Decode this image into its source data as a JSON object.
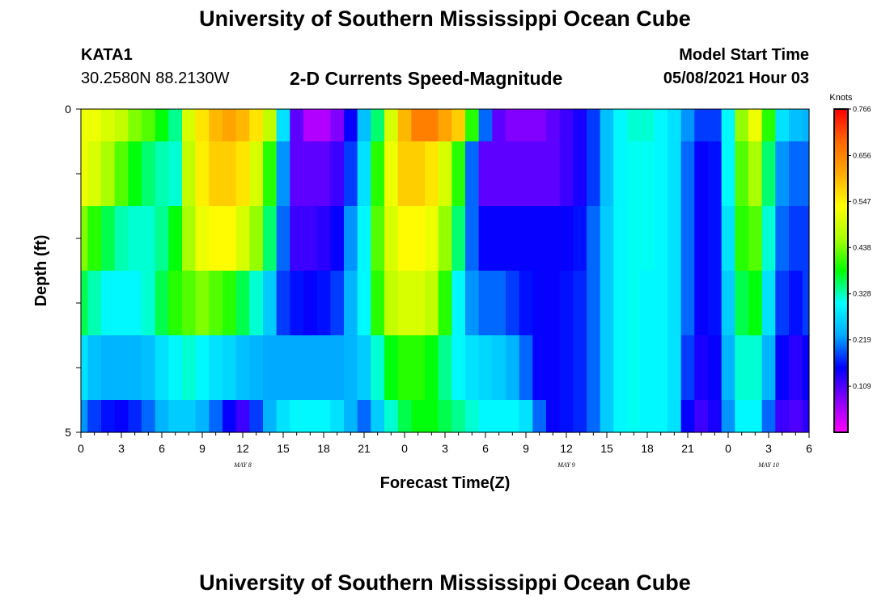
{
  "header": {
    "title": "University of Southern Mississippi Ocean Cube",
    "station_id": "KATA1",
    "station_coords": "30.2580N  88.2130W",
    "plot_title": "2-D Currents Speed-Magnitude",
    "model_start_label": "Model Start Time",
    "model_start_value": "05/08/2021 Hour 03"
  },
  "footer": {
    "title": "University of Southern Mississippi Ocean Cube"
  },
  "chart_data": {
    "type": "heatmap",
    "title": "2-D Currents Speed-Magnitude",
    "xlabel": "Forecast Time(Z)",
    "ylabel": "Depth (ft)",
    "y_tick_labels": [
      "0",
      "5"
    ],
    "ylim": [
      0,
      5
    ],
    "x_hours_range": [
      0,
      54
    ],
    "x_tick_labels": [
      "0",
      "3",
      "6",
      "9",
      "12",
      "15",
      "18",
      "21",
      "0",
      "3",
      "6",
      "9",
      "12",
      "15",
      "18",
      "21",
      "0",
      "3",
      "6"
    ],
    "date_labels": [
      {
        "text": "MAY 8",
        "hour": 12
      },
      {
        "text": "MAY 9",
        "hour": 36
      },
      {
        "text": "MAY 10",
        "hour": 51
      }
    ],
    "colorbar": {
      "unit": "Knots",
      "tick_labels": [
        "0.766",
        "0.656",
        "0.547",
        "0.438",
        "0.328",
        "0.219",
        "0.109"
      ],
      "min": 0.0,
      "max": 0.766,
      "colors": [
        "#ff00ff",
        "#8800ff",
        "#0000ff",
        "#00aaff",
        "#00ffff",
        "#00ff00",
        "#aaff00",
        "#ffff00",
        "#ffaa00",
        "#ff6600",
        "#ff0000"
      ]
    },
    "layer_depth_bounds": [
      0.0,
      0.5,
      1.5,
      2.5,
      3.5,
      4.5,
      5.0
    ],
    "time_hours": [
      0,
      1,
      2,
      3,
      4,
      5,
      6,
      7,
      8,
      9,
      10,
      11,
      12,
      13,
      14,
      15,
      16,
      17,
      18,
      19,
      20,
      21,
      22,
      23,
      24,
      25,
      26,
      27,
      28,
      29,
      30,
      31,
      32,
      33,
      34,
      35,
      36,
      37,
      38,
      39,
      40,
      41,
      42,
      43,
      44,
      45,
      46,
      47,
      48,
      49,
      50,
      51,
      52,
      53,
      54
    ],
    "values": [
      [
        0.52,
        0.52,
        0.5,
        0.48,
        0.44,
        0.42,
        0.38,
        0.34,
        0.5,
        0.56,
        0.6,
        0.62,
        0.6,
        0.56,
        0.48,
        0.28,
        0.1,
        0.05,
        0.05,
        0.08,
        0.15,
        0.25,
        0.35,
        0.5,
        0.6,
        0.66,
        0.66,
        0.62,
        0.58,
        0.4,
        0.2,
        0.1,
        0.08,
        0.08,
        0.08,
        0.1,
        0.12,
        0.14,
        0.18,
        0.25,
        0.3,
        0.32,
        0.32,
        0.3,
        0.28,
        0.22,
        0.18,
        0.18,
        0.3,
        0.45,
        0.52,
        0.4,
        0.28,
        0.25,
        0.24
      ],
      [
        0.52,
        0.5,
        0.46,
        0.42,
        0.38,
        0.35,
        0.33,
        0.32,
        0.48,
        0.55,
        0.58,
        0.58,
        0.56,
        0.5,
        0.4,
        0.22,
        0.1,
        0.1,
        0.1,
        0.12,
        0.18,
        0.28,
        0.4,
        0.52,
        0.58,
        0.58,
        0.56,
        0.5,
        0.4,
        0.2,
        0.1,
        0.1,
        0.1,
        0.1,
        0.1,
        0.1,
        0.12,
        0.14,
        0.18,
        0.25,
        0.3,
        0.31,
        0.31,
        0.3,
        0.28,
        0.2,
        0.15,
        0.16,
        0.3,
        0.42,
        0.46,
        0.35,
        0.22,
        0.2,
        0.2
      ],
      [
        0.44,
        0.4,
        0.36,
        0.33,
        0.32,
        0.32,
        0.34,
        0.38,
        0.46,
        0.52,
        0.54,
        0.54,
        0.5,
        0.45,
        0.35,
        0.2,
        0.12,
        0.12,
        0.13,
        0.15,
        0.22,
        0.3,
        0.42,
        0.5,
        0.54,
        0.54,
        0.52,
        0.45,
        0.35,
        0.2,
        0.15,
        0.15,
        0.15,
        0.15,
        0.15,
        0.15,
        0.15,
        0.16,
        0.2,
        0.26,
        0.3,
        0.31,
        0.31,
        0.3,
        0.28,
        0.2,
        0.15,
        0.16,
        0.28,
        0.4,
        0.42,
        0.32,
        0.2,
        0.18,
        0.18
      ],
      [
        0.36,
        0.33,
        0.3,
        0.3,
        0.3,
        0.32,
        0.36,
        0.4,
        0.42,
        0.44,
        0.42,
        0.4,
        0.36,
        0.32,
        0.26,
        0.18,
        0.16,
        0.15,
        0.16,
        0.18,
        0.24,
        0.3,
        0.4,
        0.48,
        0.5,
        0.5,
        0.48,
        0.4,
        0.3,
        0.22,
        0.2,
        0.2,
        0.18,
        0.16,
        0.15,
        0.15,
        0.16,
        0.17,
        0.2,
        0.26,
        0.3,
        0.31,
        0.3,
        0.3,
        0.28,
        0.2,
        0.15,
        0.16,
        0.26,
        0.36,
        0.38,
        0.28,
        0.18,
        0.16,
        0.18
      ],
      [
        0.28,
        0.25,
        0.24,
        0.24,
        0.24,
        0.25,
        0.28,
        0.3,
        0.32,
        0.3,
        0.28,
        0.27,
        0.25,
        0.24,
        0.23,
        0.23,
        0.23,
        0.23,
        0.23,
        0.23,
        0.24,
        0.26,
        0.32,
        0.38,
        0.4,
        0.4,
        0.38,
        0.34,
        0.3,
        0.28,
        0.27,
        0.26,
        0.24,
        0.2,
        0.15,
        0.15,
        0.16,
        0.17,
        0.2,
        0.26,
        0.3,
        0.31,
        0.3,
        0.3,
        0.28,
        0.18,
        0.14,
        0.15,
        0.24,
        0.32,
        0.32,
        0.24,
        0.15,
        0.13,
        0.15
      ],
      [
        0.22,
        0.18,
        0.16,
        0.15,
        0.17,
        0.2,
        0.24,
        0.26,
        0.26,
        0.24,
        0.2,
        0.15,
        0.12,
        0.18,
        0.24,
        0.28,
        0.3,
        0.3,
        0.3,
        0.28,
        0.24,
        0.2,
        0.26,
        0.32,
        0.36,
        0.38,
        0.38,
        0.36,
        0.34,
        0.32,
        0.3,
        0.3,
        0.3,
        0.28,
        0.2,
        0.15,
        0.16,
        0.17,
        0.2,
        0.26,
        0.3,
        0.31,
        0.3,
        0.3,
        0.28,
        0.15,
        0.12,
        0.14,
        0.22,
        0.3,
        0.3,
        0.2,
        0.12,
        0.11,
        0.13
      ]
    ]
  }
}
